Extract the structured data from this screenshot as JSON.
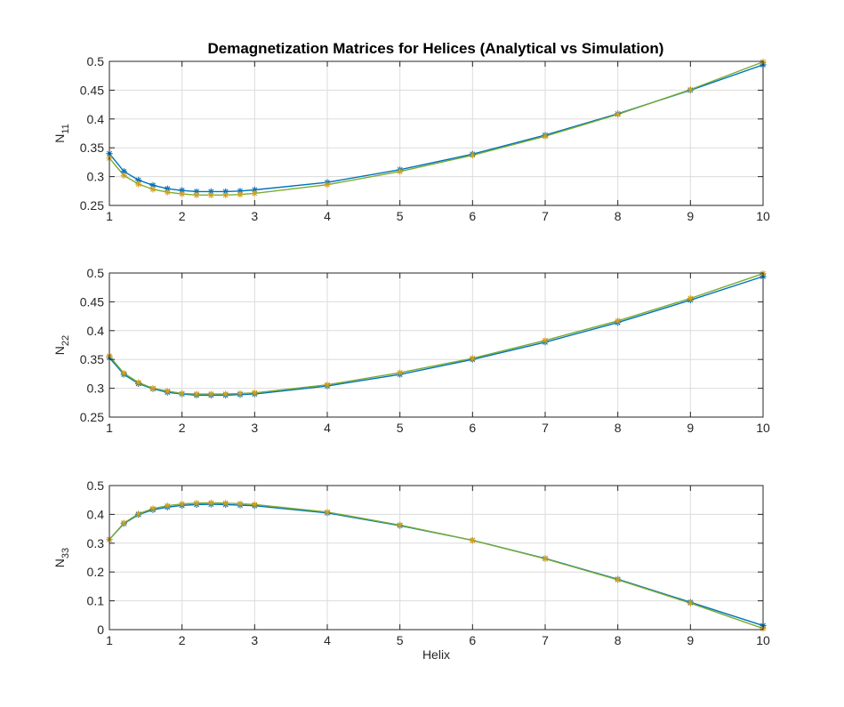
{
  "figure_title": "Demagnetization Matrices for Helices (Analytical vs Simulation)",
  "colors": {
    "analytical": "#0072BD",
    "simulation": "#77AC30",
    "marker_sim": "#D4A017",
    "axis": "#262626",
    "grid": "#DCDCDC"
  },
  "chart_data": [
    {
      "type": "line",
      "ylabel_main": "N",
      "ylabel_sub": "11",
      "xlabel": "",
      "xlim": [
        1,
        10
      ],
      "ylim": [
        0.25,
        0.5
      ],
      "xticks": [
        "1",
        "2",
        "3",
        "4",
        "5",
        "6",
        "7",
        "8",
        "9",
        "10"
      ],
      "yticks": [
        "0.25",
        "0.3",
        "0.35",
        "0.4",
        "0.45",
        "0.5"
      ],
      "grid": true,
      "x": [
        1,
        1.2,
        1.4,
        1.6,
        1.8,
        2,
        2.2,
        2.4,
        2.6,
        2.8,
        3,
        4,
        5,
        6,
        7,
        8,
        9,
        10
      ],
      "series": [
        {
          "values": [
            0.34,
            0.309,
            0.294,
            0.285,
            0.279,
            0.276,
            0.274,
            0.274,
            0.274,
            0.275,
            0.277,
            0.29,
            0.312,
            0.339,
            0.372,
            0.409,
            0.45,
            0.494
          ]
        },
        {
          "values": [
            0.332,
            0.302,
            0.287,
            0.278,
            0.273,
            0.27,
            0.268,
            0.268,
            0.268,
            0.269,
            0.271,
            0.286,
            0.309,
            0.337,
            0.37,
            0.408,
            0.451,
            0.499
          ]
        }
      ]
    },
    {
      "type": "line",
      "ylabel_main": "N",
      "ylabel_sub": "22",
      "xlabel": "",
      "xlim": [
        1,
        10
      ],
      "ylim": [
        0.25,
        0.5
      ],
      "xticks": [
        "1",
        "2",
        "3",
        "4",
        "5",
        "6",
        "7",
        "8",
        "9",
        "10"
      ],
      "yticks": [
        "0.25",
        "0.3",
        "0.35",
        "0.4",
        "0.45",
        "0.5"
      ],
      "grid": true,
      "x": [
        1,
        1.2,
        1.4,
        1.6,
        1.8,
        2,
        2.2,
        2.4,
        2.6,
        2.8,
        3,
        4,
        5,
        6,
        7,
        8,
        9,
        10
      ],
      "series": [
        {
          "values": [
            0.353,
            0.324,
            0.308,
            0.299,
            0.293,
            0.29,
            0.288,
            0.288,
            0.288,
            0.289,
            0.29,
            0.304,
            0.324,
            0.35,
            0.38,
            0.414,
            0.453,
            0.494
          ]
        },
        {
          "values": [
            0.356,
            0.326,
            0.31,
            0.3,
            0.295,
            0.291,
            0.29,
            0.29,
            0.29,
            0.291,
            0.292,
            0.306,
            0.327,
            0.352,
            0.383,
            0.417,
            0.456,
            0.499
          ]
        }
      ]
    },
    {
      "type": "line",
      "ylabel_main": "N",
      "ylabel_sub": "33",
      "xlabel": "Helix",
      "xlim": [
        1,
        10
      ],
      "ylim": [
        0,
        0.5
      ],
      "xticks": [
        "1",
        "2",
        "3",
        "4",
        "5",
        "6",
        "7",
        "8",
        "9",
        "10"
      ],
      "yticks": [
        "0",
        "0.1",
        "0.2",
        "0.3",
        "0.4",
        "0.5"
      ],
      "grid": true,
      "x": [
        1,
        1.2,
        1.4,
        1.6,
        1.8,
        2,
        2.2,
        2.4,
        2.6,
        2.8,
        3,
        4,
        5,
        6,
        7,
        8,
        9,
        10
      ],
      "series": [
        {
          "values": [
            0.313,
            0.368,
            0.399,
            0.416,
            0.425,
            0.431,
            0.434,
            0.435,
            0.434,
            0.432,
            0.43,
            0.405,
            0.361,
            0.31,
            0.247,
            0.175,
            0.095,
            0.014
          ]
        },
        {
          "values": [
            0.313,
            0.37,
            0.402,
            0.42,
            0.43,
            0.436,
            0.439,
            0.44,
            0.439,
            0.437,
            0.434,
            0.408,
            0.363,
            0.31,
            0.246,
            0.173,
            0.092,
            0.004
          ]
        }
      ]
    }
  ]
}
